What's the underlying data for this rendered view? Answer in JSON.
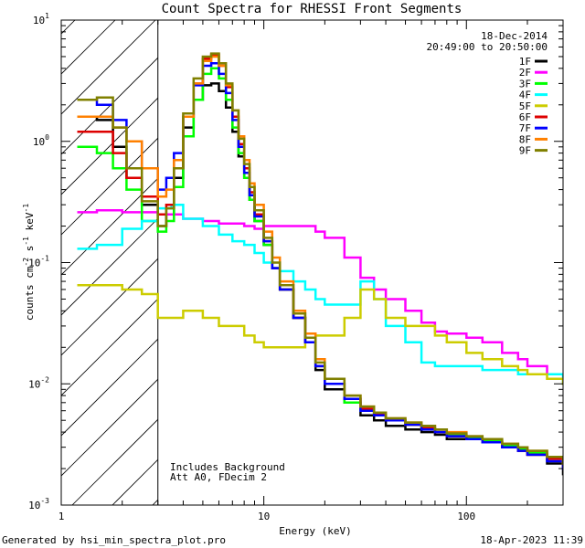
{
  "chart_data": {
    "type": "line",
    "title": "Count Spectra for RHESSI Front Segments",
    "date": "18-Dec-2014",
    "time_range": "20:49:00 to 20:50:00",
    "xlabel": "Energy (keV)",
    "ylabel_parts": [
      "counts cm",
      "-2",
      " s",
      "-1",
      " keV",
      "-1"
    ],
    "xscale": "log",
    "yscale": "log",
    "xlim": [
      1.0,
      300
    ],
    "ylim": [
      0.001,
      10
    ],
    "x_ticks": [
      {
        "value": 1,
        "label": "1"
      },
      {
        "value": 10,
        "label": "10"
      },
      {
        "value": 100,
        "label": "100"
      }
    ],
    "y_ticks": [
      {
        "value": 10,
        "base": "10",
        "exp": "1"
      },
      {
        "value": 1,
        "base": "10",
        "exp": "0"
      },
      {
        "value": 0.1,
        "base": "10",
        "exp": "-1"
      },
      {
        "value": 0.01,
        "base": "10",
        "exp": "-2"
      },
      {
        "value": 0.001,
        "base": "10",
        "exp": "-3"
      }
    ],
    "hatched_region_max_keV": 3.0,
    "annotations": [
      "Includes Background",
      "Att A0, FDecim 2"
    ],
    "series": [
      {
        "name": "1F",
        "color": "#000000",
        "x": [
          1.2,
          1.5,
          1.8,
          2.1,
          2.5,
          3.0,
          3.3,
          3.6,
          4.0,
          4.5,
          5.0,
          5.5,
          6.0,
          6.5,
          7.0,
          7.5,
          8.0,
          8.5,
          9.0,
          10,
          11,
          12,
          14,
          16,
          18,
          20,
          25,
          30,
          35,
          40,
          50,
          60,
          70,
          80,
          100,
          120,
          150,
          180,
          200,
          250,
          300
        ],
        "y": [
          1.6,
          1.5,
          0.9,
          0.5,
          0.3,
          0.2,
          0.25,
          0.5,
          1.3,
          2.2,
          2.9,
          3.0,
          2.6,
          1.9,
          1.2,
          0.75,
          0.5,
          0.33,
          0.22,
          0.14,
          0.09,
          0.06,
          0.035,
          0.022,
          0.013,
          0.009,
          0.007,
          0.0055,
          0.005,
          0.0045,
          0.0042,
          0.004,
          0.0038,
          0.0035,
          0.0035,
          0.0033,
          0.003,
          0.0028,
          0.0026,
          0.0022,
          0.0018
        ]
      },
      {
        "name": "2F",
        "color": "#ff00ff",
        "x": [
          1.2,
          1.5,
          2.0,
          2.5,
          3.0,
          4.0,
          5.0,
          6.0,
          7.0,
          8.0,
          9.0,
          10,
          12,
          14,
          16,
          18,
          20,
          25,
          30,
          35,
          40,
          50,
          60,
          70,
          80,
          100,
          120,
          150,
          180,
          200,
          250,
          300
        ],
        "y": [
          0.26,
          0.27,
          0.26,
          0.26,
          0.25,
          0.23,
          0.22,
          0.21,
          0.21,
          0.2,
          0.19,
          0.2,
          0.2,
          0.2,
          0.2,
          0.18,
          0.16,
          0.11,
          0.075,
          0.06,
          0.05,
          0.04,
          0.032,
          0.027,
          0.026,
          0.024,
          0.022,
          0.018,
          0.016,
          0.014,
          0.012,
          0.012
        ]
      },
      {
        "name": "3F",
        "color": "#00ff00",
        "x": [
          1.2,
          1.5,
          1.8,
          2.1,
          2.5,
          3.0,
          3.3,
          3.6,
          4.0,
          4.5,
          5.0,
          5.5,
          6.0,
          6.5,
          7.0,
          7.5,
          8.0,
          8.5,
          9.0,
          10,
          11,
          12,
          14,
          16,
          18,
          20,
          25,
          30,
          35,
          40,
          50,
          60,
          70,
          80,
          100,
          120,
          150,
          180,
          200,
          250,
          300
        ],
        "y": [
          0.9,
          0.8,
          0.6,
          0.4,
          0.22,
          0.18,
          0.22,
          0.42,
          1.1,
          2.2,
          3.6,
          4.0,
          3.3,
          2.2,
          1.3,
          0.8,
          0.5,
          0.33,
          0.22,
          0.14,
          0.09,
          0.06,
          0.035,
          0.022,
          0.014,
          0.01,
          0.007,
          0.006,
          0.0055,
          0.005,
          0.0046,
          0.0043,
          0.004,
          0.0038,
          0.0036,
          0.0034,
          0.0031,
          0.0029,
          0.0027,
          0.0025,
          0.0022
        ]
      },
      {
        "name": "4F",
        "color": "#00ffff",
        "x": [
          1.2,
          1.5,
          2.0,
          2.5,
          3.0,
          3.5,
          4.0,
          5.0,
          6.0,
          7.0,
          8.0,
          9.0,
          10,
          11,
          12,
          14,
          16,
          18,
          20,
          25,
          30,
          35,
          40,
          50,
          60,
          70,
          80,
          100,
          120,
          150,
          180,
          200,
          250,
          300
        ],
        "y": [
          0.13,
          0.14,
          0.19,
          0.22,
          0.28,
          0.3,
          0.23,
          0.2,
          0.17,
          0.15,
          0.14,
          0.12,
          0.1,
          0.09,
          0.085,
          0.07,
          0.06,
          0.05,
          0.045,
          0.045,
          0.07,
          0.05,
          0.03,
          0.022,
          0.015,
          0.014,
          0.014,
          0.014,
          0.013,
          0.013,
          0.012,
          0.012,
          0.012,
          0.01
        ]
      },
      {
        "name": "5F",
        "color": "#cccc00",
        "x": [
          1.2,
          1.5,
          2.0,
          2.5,
          3.0,
          3.5,
          4.0,
          5.0,
          6.0,
          7.0,
          8.0,
          9.0,
          10,
          12,
          14,
          16,
          18,
          20,
          25,
          30,
          35,
          40,
          50,
          60,
          70,
          80,
          100,
          120,
          150,
          180,
          200,
          250,
          300
        ],
        "y": [
          0.065,
          0.065,
          0.06,
          0.055,
          0.035,
          0.035,
          0.04,
          0.035,
          0.03,
          0.03,
          0.025,
          0.022,
          0.02,
          0.02,
          0.02,
          0.022,
          0.025,
          0.025,
          0.035,
          0.06,
          0.05,
          0.035,
          0.03,
          0.03,
          0.025,
          0.022,
          0.018,
          0.016,
          0.014,
          0.013,
          0.012,
          0.011,
          0.01
        ]
      },
      {
        "name": "6F",
        "color": "#dd0000",
        "x": [
          1.2,
          1.5,
          1.8,
          2.1,
          2.5,
          3.0,
          3.3,
          3.6,
          4.0,
          4.5,
          5.0,
          5.5,
          6.0,
          6.5,
          7.0,
          7.5,
          8.0,
          8.5,
          9.0,
          10,
          11,
          12,
          14,
          16,
          18,
          20,
          25,
          30,
          35,
          40,
          50,
          60,
          70,
          80,
          100,
          120,
          150,
          180,
          200,
          250,
          300
        ],
        "y": [
          1.2,
          1.2,
          0.8,
          0.5,
          0.35,
          0.25,
          0.3,
          0.6,
          1.6,
          3.0,
          4.8,
          5.2,
          4.2,
          2.8,
          1.6,
          0.95,
          0.6,
          0.38,
          0.25,
          0.15,
          0.09,
          0.06,
          0.035,
          0.022,
          0.014,
          0.01,
          0.0075,
          0.0062,
          0.0056,
          0.005,
          0.0046,
          0.0043,
          0.004,
          0.0037,
          0.0035,
          0.0033,
          0.003,
          0.0028,
          0.0026,
          0.0024,
          0.0021
        ]
      },
      {
        "name": "7F",
        "color": "#0000ff",
        "x": [
          1.2,
          1.5,
          1.8,
          2.1,
          2.5,
          3.0,
          3.3,
          3.6,
          4.0,
          4.5,
          5.0,
          5.5,
          6.0,
          6.5,
          7.0,
          7.5,
          8.0,
          8.5,
          9.0,
          10,
          11,
          12,
          14,
          16,
          18,
          20,
          25,
          30,
          35,
          40,
          50,
          60,
          70,
          80,
          100,
          120,
          150,
          180,
          200,
          250,
          300
        ],
        "y": [
          2.2,
          2.0,
          1.5,
          1.0,
          0.6,
          0.4,
          0.5,
          0.8,
          1.6,
          2.9,
          4.2,
          4.4,
          3.6,
          2.5,
          1.5,
          0.9,
          0.55,
          0.36,
          0.24,
          0.15,
          0.09,
          0.06,
          0.035,
          0.022,
          0.014,
          0.01,
          0.0075,
          0.006,
          0.0055,
          0.005,
          0.0046,
          0.0042,
          0.004,
          0.0037,
          0.0035,
          0.0033,
          0.003,
          0.0028,
          0.0026,
          0.0023,
          0.002
        ]
      },
      {
        "name": "8F",
        "color": "#ff8000",
        "x": [
          1.2,
          1.5,
          1.8,
          2.1,
          2.5,
          3.0,
          3.3,
          3.6,
          4.0,
          4.5,
          5.0,
          5.5,
          6.0,
          6.5,
          7.0,
          7.5,
          8.0,
          8.5,
          9.0,
          10,
          11,
          12,
          14,
          16,
          18,
          20,
          25,
          30,
          35,
          40,
          50,
          60,
          70,
          80,
          100,
          120,
          150,
          180,
          200,
          250,
          300
        ],
        "y": [
          1.6,
          1.6,
          1.3,
          1.0,
          0.6,
          0.35,
          0.4,
          0.7,
          1.6,
          3.0,
          4.6,
          5.0,
          4.2,
          2.9,
          1.8,
          1.1,
          0.7,
          0.45,
          0.3,
          0.18,
          0.11,
          0.07,
          0.04,
          0.026,
          0.016,
          0.011,
          0.008,
          0.0065,
          0.0058,
          0.0052,
          0.0048,
          0.0045,
          0.0042,
          0.004,
          0.0037,
          0.0035,
          0.0032,
          0.003,
          0.0028,
          0.0025,
          0.0022
        ]
      },
      {
        "name": "9F",
        "color": "#808000",
        "x": [
          1.2,
          1.5,
          1.8,
          2.1,
          2.5,
          3.0,
          3.3,
          3.6,
          4.0,
          4.5,
          5.0,
          5.5,
          6.0,
          6.5,
          7.0,
          7.5,
          8.0,
          8.5,
          9.0,
          10,
          11,
          12,
          14,
          16,
          18,
          20,
          25,
          30,
          35,
          40,
          50,
          60,
          70,
          80,
          100,
          120,
          150,
          180,
          200,
          250,
          300
        ],
        "y": [
          2.2,
          2.3,
          1.3,
          0.6,
          0.32,
          0.2,
          0.28,
          0.6,
          1.7,
          3.3,
          5.0,
          5.3,
          4.4,
          3.0,
          1.8,
          1.05,
          0.65,
          0.42,
          0.27,
          0.16,
          0.1,
          0.065,
          0.038,
          0.024,
          0.015,
          0.011,
          0.008,
          0.0065,
          0.0058,
          0.0052,
          0.0048,
          0.0045,
          0.0042,
          0.0039,
          0.0037,
          0.0035,
          0.0032,
          0.003,
          0.0028,
          0.0025,
          0.0022
        ]
      }
    ]
  },
  "footer": {
    "generated_by": "Generated by hsi_min_spectra_plot.pro",
    "timestamp": "18-Apr-2023 11:39"
  }
}
